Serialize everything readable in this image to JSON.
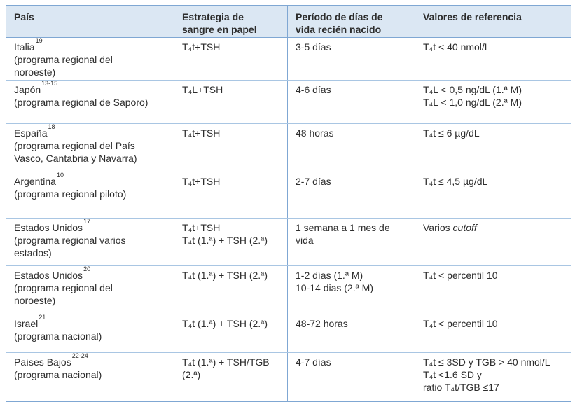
{
  "colors": {
    "header_background": "#dbe7f3",
    "grid_strong": "#7fa7d3",
    "grid_light": "#a9c6e3",
    "text": "#2d2d2d"
  },
  "table": {
    "headers": {
      "country": [
        "País"
      ],
      "strategy": [
        "Estrategia de",
        "sangre en papel"
      ],
      "period": [
        "Período de días de",
        "vida recién nacido"
      ],
      "reference": [
        "Valores de referencia"
      ]
    },
    "rows": [
      {
        "country": "Italia",
        "ref_mark": "19",
        "detail_lines": [
          "(programa regional del",
          "noroeste)"
        ],
        "strategy_lines": [
          "T₄t+TSH"
        ],
        "period_lines": [
          "3-5 días"
        ],
        "reference_lines": [
          "T₄t < 40 nmol/L"
        ]
      },
      {
        "country": "Japón",
        "ref_mark": "13-15",
        "detail_lines": [
          "(programa regional de Saporo)"
        ],
        "strategy_lines": [
          "T₄L+TSH"
        ],
        "period_lines": [
          "4-6 días"
        ],
        "reference_lines": [
          "T₄L < 0,5 ng/dL (1.ª M)",
          "T₄L < 1,0 ng/dL (2.ª M)"
        ]
      },
      {
        "country": "España",
        "ref_mark": "18",
        "detail_lines": [
          "(programa regional del País",
          "Vasco, Cantabria y Navarra)"
        ],
        "strategy_lines": [
          "T₄t+TSH"
        ],
        "period_lines": [
          "48 horas"
        ],
        "reference_lines": [
          "T₄t ≤ 6 µg/dL"
        ]
      },
      {
        "country": "Argentina",
        "ref_mark": "10",
        "detail_lines": [
          "(programa regional piloto)"
        ],
        "strategy_lines": [
          "T₄t+TSH"
        ],
        "period_lines": [
          "2-7 días"
        ],
        "reference_lines": [
          "T₄t ≤ 4,5 µg/dL"
        ]
      },
      {
        "country": "Estados Unidos",
        "ref_mark": "17",
        "detail_lines": [
          "(programa regional varios",
          "estados)"
        ],
        "strategy_lines": [
          "T₄t+TSH",
          "T₄t (1.ª) + TSH (2.ª)"
        ],
        "period_lines": [
          "1 semana a 1 mes de",
          "vida"
        ],
        "reference_plain": "Varios",
        "reference_italic": "cutoff"
      },
      {
        "country": "Estados Unidos",
        "ref_mark": "20",
        "detail_lines": [
          "(programa regional del",
          "noroeste)"
        ],
        "strategy_lines": [
          "T₄t (1.ª) + TSH (2.ª)"
        ],
        "period_lines": [
          "1-2 días (1.ª M)",
          "10-14 dias (2.ª M)"
        ],
        "reference_lines": [
          "T₄t < percentil 10"
        ]
      },
      {
        "country": "Israel",
        "ref_mark": "21",
        "detail_lines": [
          "(programa nacional)"
        ],
        "strategy_lines": [
          "T₄t (1.ª) + TSH (2.ª)"
        ],
        "period_lines": [
          "48-72 horas"
        ],
        "reference_lines": [
          "T₄t < percentil 10"
        ]
      },
      {
        "country": "Países Bajos",
        "ref_mark": "22-24",
        "detail_lines": [
          "(programa nacional)"
        ],
        "strategy_lines": [
          "T₄t (1.ª) + TSH/TGB",
          "(2.ª)"
        ],
        "period_lines": [
          "4-7 días"
        ],
        "reference_lines": [
          "T₄t ≤ 3SD y TGB > 40 nmol/L",
          "T₄t <1.6 SD y",
          "ratio T₄t/TGB ≤17"
        ]
      }
    ]
  }
}
